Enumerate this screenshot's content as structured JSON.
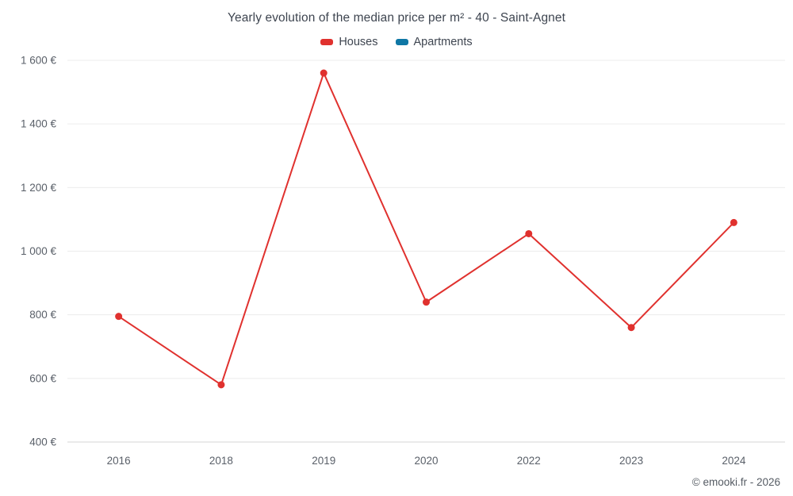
{
  "header": {
    "title": "Yearly evolution of the median price per m² - 40 - Saint-Agnet"
  },
  "legend": {
    "items": [
      {
        "label": "Houses",
        "color": "#e0312e"
      },
      {
        "label": "Apartments",
        "color": "#0f77a5"
      }
    ]
  },
  "footer": {
    "credit": "© emooki.fr - 2026"
  },
  "chart_data": {
    "type": "line",
    "title": "Yearly evolution of the median price per m² - 40 - Saint-Agnet",
    "categories": [
      "2016",
      "2018",
      "2019",
      "2020",
      "2022",
      "2023",
      "2024"
    ],
    "series": [
      {
        "name": "Houses",
        "color": "#e0312e",
        "values": [
          795,
          580,
          1560,
          840,
          1055,
          760,
          1090
        ]
      },
      {
        "name": "Apartments",
        "color": "#0f77a5",
        "values": []
      }
    ],
    "xlabel": "",
    "ylabel": "",
    "ylim": [
      400,
      1600
    ],
    "ytick_step": 200,
    "ytick_labels": [
      "400 €",
      "600 €",
      "800 €",
      "1 000 €",
      "1 200 €",
      "1 400 €",
      "1 600 €"
    ],
    "grid": true,
    "gridline_color": "#ececec",
    "axisline_color": "#d6d6d6",
    "legend_position": "top"
  }
}
